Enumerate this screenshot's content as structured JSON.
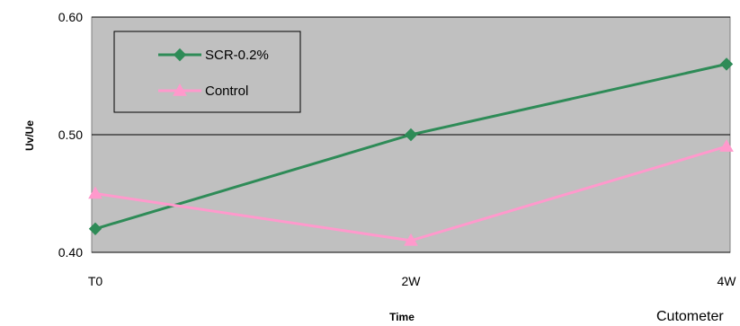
{
  "chart_data": {
    "type": "line",
    "categories": [
      "T0",
      "2W",
      "4W"
    ],
    "series": [
      {
        "name": "SCR-0.2%",
        "values": [
          0.42,
          0.5,
          0.56
        ],
        "color": "#2e8b57",
        "marker": "diamond"
      },
      {
        "name": "Control",
        "values": [
          0.45,
          0.41,
          0.49
        ],
        "color": "#ff99cc",
        "marker": "triangle"
      }
    ],
    "xlabel": "Time",
    "ylabel": "Uv/Ue",
    "ylim": [
      0.4,
      0.6
    ],
    "yticks": [
      "0.40",
      "0.50",
      "0.60"
    ],
    "grid": true,
    "plot_background": "#c0c0c0",
    "legend_position": "top-left"
  },
  "caption": "Cutometer"
}
